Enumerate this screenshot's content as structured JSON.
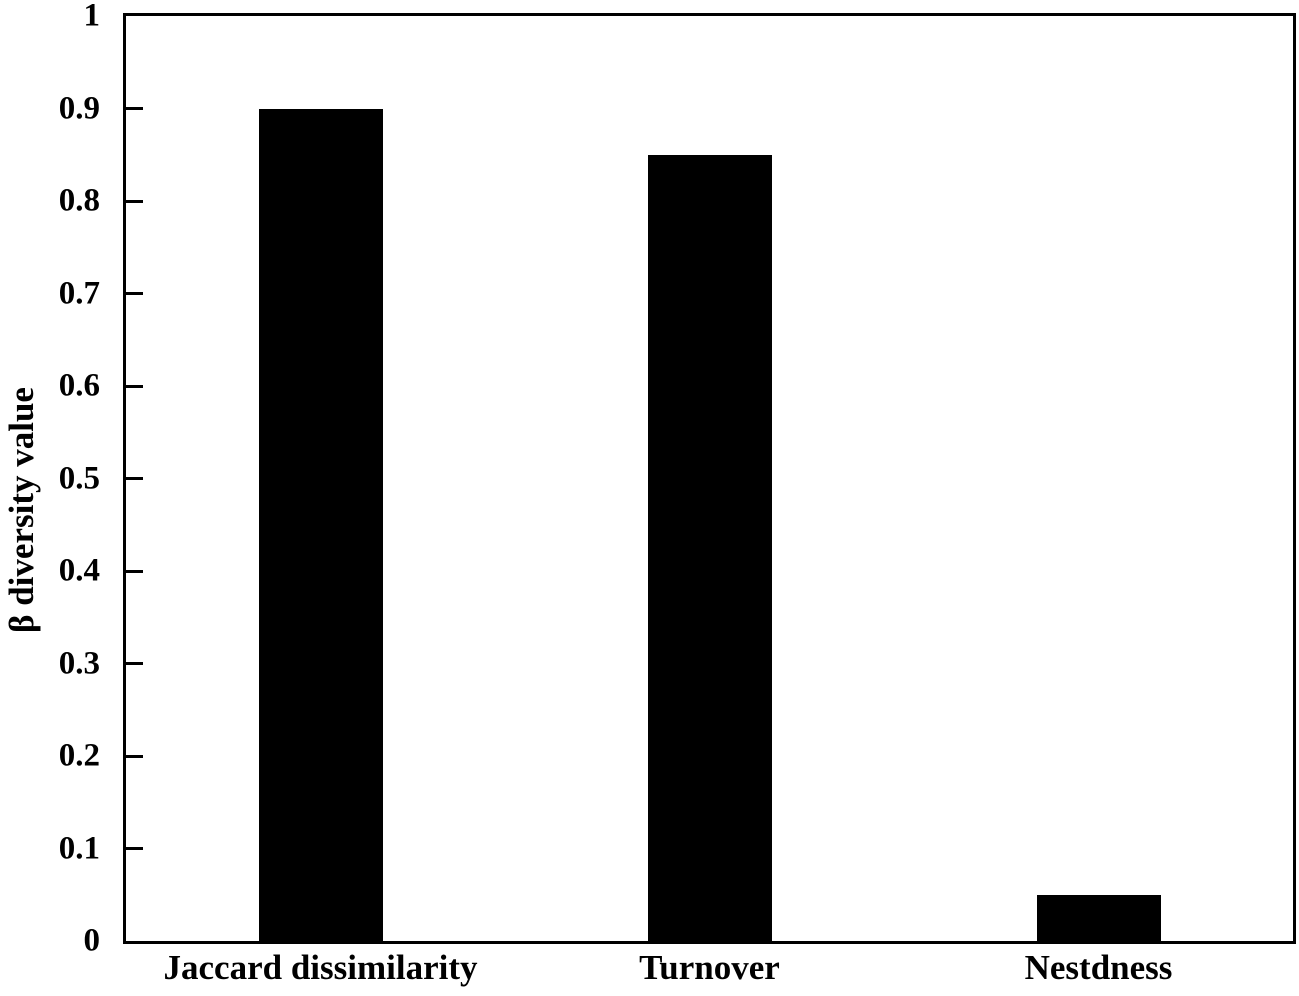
{
  "chart_data": {
    "type": "bar",
    "categories": [
      "Jaccard dissimilarity",
      "Turnover",
      "Nestdness"
    ],
    "values": [
      0.9,
      0.85,
      0.05
    ],
    "title": "",
    "xlabel": "",
    "ylabel": "β diversity value",
    "ylim": [
      0,
      1
    ],
    "yticks": [
      {
        "value": 1.0,
        "label": "1"
      },
      {
        "value": 0.9,
        "label": "0.9"
      },
      {
        "value": 0.8,
        "label": "0.8"
      },
      {
        "value": 0.7,
        "label": "0.7"
      },
      {
        "value": 0.6,
        "label": "0.6"
      },
      {
        "value": 0.5,
        "label": "0.5"
      },
      {
        "value": 0.4,
        "label": "0.4"
      },
      {
        "value": 0.3,
        "label": "0.3"
      },
      {
        "value": 0.2,
        "label": "0.2"
      },
      {
        "value": 0.1,
        "label": "0.1"
      },
      {
        "value": 0.0,
        "label": "0"
      }
    ],
    "grid": false,
    "legend": null,
    "bar_color": "#000000",
    "frame_color": "#000000",
    "background_color": "#ffffff"
  }
}
